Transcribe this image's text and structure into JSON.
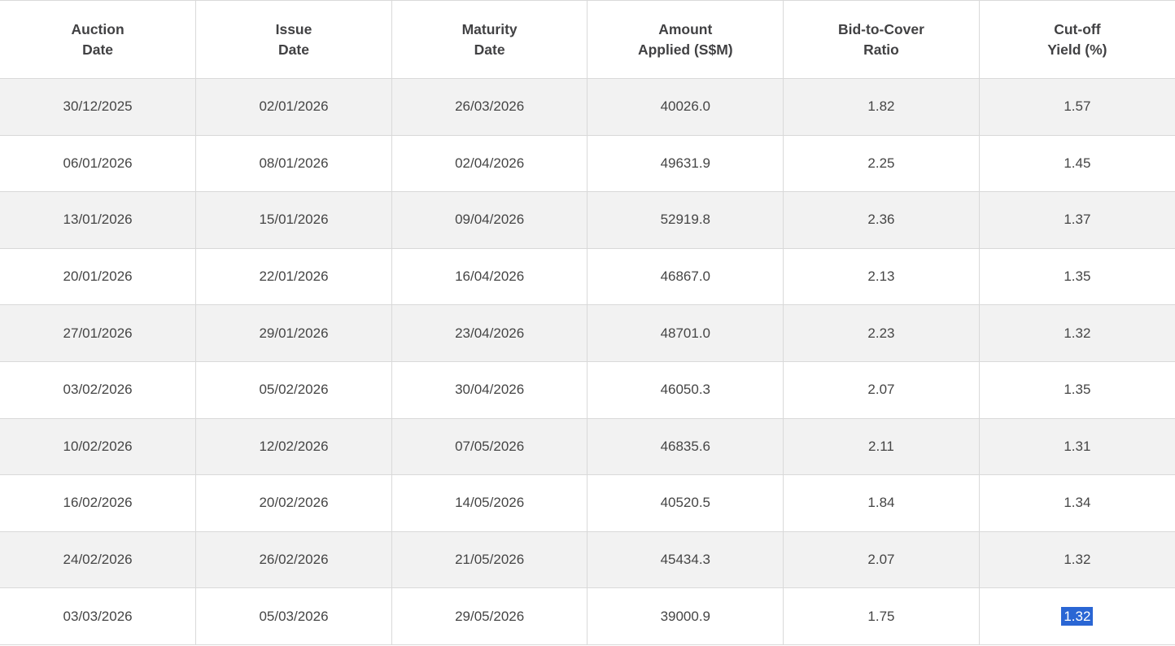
{
  "colors": {
    "border": "#d9d9d9",
    "row_alt_bg": "#f2f2f2",
    "header_text": "#414143",
    "cell_text": "#454545",
    "selection_bg": "#2a66d4",
    "selection_text": "#ffffff"
  },
  "table": {
    "headers": [
      {
        "line1": "Auction",
        "line2": "Date"
      },
      {
        "line1": "Issue",
        "line2": "Date"
      },
      {
        "line1": "Maturity",
        "line2": "Date"
      },
      {
        "line1": "Amount",
        "line2": "Applied (S$M)"
      },
      {
        "line1": "Bid-to-Cover",
        "line2": "Ratio"
      },
      {
        "line1": "Cut-off",
        "line2": "Yield (%)"
      }
    ],
    "rows": [
      {
        "auction_date": "30/12/2025",
        "issue_date": "02/01/2026",
        "maturity_date": "26/03/2026",
        "amount_applied": "40026.0",
        "bid_to_cover": "1.82",
        "cutoff_yield": "1.57"
      },
      {
        "auction_date": "06/01/2026",
        "issue_date": "08/01/2026",
        "maturity_date": "02/04/2026",
        "amount_applied": "49631.9",
        "bid_to_cover": "2.25",
        "cutoff_yield": "1.45"
      },
      {
        "auction_date": "13/01/2026",
        "issue_date": "15/01/2026",
        "maturity_date": "09/04/2026",
        "amount_applied": "52919.8",
        "bid_to_cover": "2.36",
        "cutoff_yield": "1.37"
      },
      {
        "auction_date": "20/01/2026",
        "issue_date": "22/01/2026",
        "maturity_date": "16/04/2026",
        "amount_applied": "46867.0",
        "bid_to_cover": "2.13",
        "cutoff_yield": "1.35"
      },
      {
        "auction_date": "27/01/2026",
        "issue_date": "29/01/2026",
        "maturity_date": "23/04/2026",
        "amount_applied": "48701.0",
        "bid_to_cover": "2.23",
        "cutoff_yield": "1.32"
      },
      {
        "auction_date": "03/02/2026",
        "issue_date": "05/02/2026",
        "maturity_date": "30/04/2026",
        "amount_applied": "46050.3",
        "bid_to_cover": "2.07",
        "cutoff_yield": "1.35"
      },
      {
        "auction_date": "10/02/2026",
        "issue_date": "12/02/2026",
        "maturity_date": "07/05/2026",
        "amount_applied": "46835.6",
        "bid_to_cover": "2.11",
        "cutoff_yield": "1.31"
      },
      {
        "auction_date": "16/02/2026",
        "issue_date": "20/02/2026",
        "maturity_date": "14/05/2026",
        "amount_applied": "40520.5",
        "bid_to_cover": "1.84",
        "cutoff_yield": "1.34"
      },
      {
        "auction_date": "24/02/2026",
        "issue_date": "26/02/2026",
        "maturity_date": "21/05/2026",
        "amount_applied": "45434.3",
        "bid_to_cover": "2.07",
        "cutoff_yield": "1.32"
      },
      {
        "auction_date": "03/03/2026",
        "issue_date": "05/03/2026",
        "maturity_date": "29/05/2026",
        "amount_applied": "39000.9",
        "bid_to_cover": "1.75",
        "cutoff_yield": "1.32"
      }
    ],
    "selection": {
      "row": 10,
      "column": "Cut-off Yield (%)",
      "value": "1.32"
    }
  },
  "chart_data": {
    "type": "table",
    "columns": [
      "Auction Date",
      "Issue Date",
      "Maturity Date",
      "Amount Applied (S$M)",
      "Bid-to-Cover Ratio",
      "Cut-off Yield (%)"
    ],
    "rows": [
      [
        "30/12/2025",
        "02/01/2026",
        "26/03/2026",
        "40026.0",
        "1.82",
        "1.57"
      ],
      [
        "06/01/2026",
        "08/01/2026",
        "02/04/2026",
        "49631.9",
        "2.25",
        "1.45"
      ],
      [
        "13/01/2026",
        "15/01/2026",
        "09/04/2026",
        "52919.8",
        "2.36",
        "1.37"
      ],
      [
        "20/01/2026",
        "22/01/2026",
        "16/04/2026",
        "46867.0",
        "2.13",
        "1.35"
      ],
      [
        "27/01/2026",
        "29/01/2026",
        "23/04/2026",
        "48701.0",
        "2.23",
        "1.32"
      ],
      [
        "03/02/2026",
        "05/02/2026",
        "30/04/2026",
        "46050.3",
        "2.07",
        "1.35"
      ],
      [
        "10/02/2026",
        "12/02/2026",
        "07/05/2026",
        "46835.6",
        "2.11",
        "1.31"
      ],
      [
        "16/02/2026",
        "20/02/2026",
        "14/05/2026",
        "40520.5",
        "1.84",
        "1.34"
      ],
      [
        "24/02/2026",
        "26/02/2026",
        "21/05/2026",
        "45434.3",
        "2.07",
        "1.32"
      ],
      [
        "03/03/2026",
        "05/03/2026",
        "29/05/2026",
        "39000.9",
        "1.75",
        "1.32"
      ]
    ]
  }
}
